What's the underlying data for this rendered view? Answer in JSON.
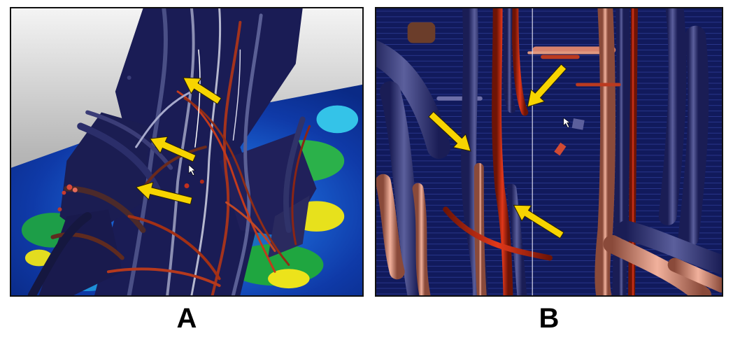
{
  "panels": [
    {
      "id": "A",
      "label": "A"
    },
    {
      "id": "B",
      "label": "B"
    }
  ],
  "colors": {
    "arrow": "#f7d400",
    "fiber_navy": "#1c1f5c",
    "fiber_red": "#b3200e",
    "fiber_salmon": "#d98670",
    "map_blue": "#1f5fd6",
    "map_green": "#22a83a",
    "map_yellow": "#e9e21a"
  },
  "icons": [
    "arrow-icon",
    "mouse-cursor-icon"
  ]
}
